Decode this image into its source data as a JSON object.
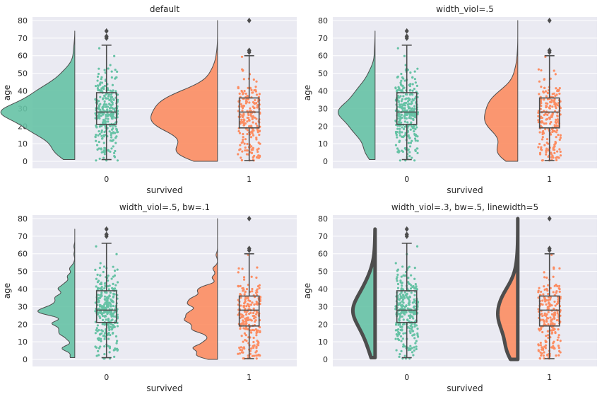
{
  "chart_data": [
    {
      "type": "raincloud",
      "title": "default",
      "xlabel": "survived",
      "ylabel": "age",
      "categories": [
        "0",
        "1"
      ],
      "ylim": [
        -4,
        82
      ],
      "yticks": [
        0,
        10,
        20,
        30,
        40,
        50,
        60,
        70,
        80
      ],
      "grid": true,
      "colors": [
        "#66c2a5",
        "#fc8d62"
      ],
      "width_viol": 1.0,
      "bw": "scott",
      "linewidth": 1,
      "boxes": [
        {
          "category": "0",
          "min": 1,
          "q1": 21,
          "median": 28,
          "q3": 39,
          "max": 66,
          "outliers": [
            70,
            71,
            74
          ]
        },
        {
          "category": "1",
          "min": 0.42,
          "q1": 19,
          "median": 28,
          "q3": 36,
          "max": 60,
          "outliers": [
            62,
            63,
            80
          ]
        }
      ]
    },
    {
      "type": "raincloud",
      "title": "width_viol=.5",
      "xlabel": "survived",
      "ylabel": "age",
      "categories": [
        "0",
        "1"
      ],
      "ylim": [
        -4,
        82
      ],
      "yticks": [
        0,
        10,
        20,
        30,
        40,
        50,
        60,
        70,
        80
      ],
      "grid": true,
      "colors": [
        "#66c2a5",
        "#fc8d62"
      ],
      "width_viol": 0.5,
      "bw": "scott",
      "linewidth": 1,
      "boxes": [
        {
          "category": "0",
          "min": 1,
          "q1": 21,
          "median": 28,
          "q3": 39,
          "max": 66,
          "outliers": [
            70,
            71,
            74
          ]
        },
        {
          "category": "1",
          "min": 0.42,
          "q1": 19,
          "median": 28,
          "q3": 36,
          "max": 60,
          "outliers": [
            62,
            63,
            80
          ]
        }
      ]
    },
    {
      "type": "raincloud",
      "title": "width_viol=.5, bw=.1",
      "xlabel": "survived",
      "ylabel": "age",
      "categories": [
        "0",
        "1"
      ],
      "ylim": [
        -4,
        82
      ],
      "yticks": [
        0,
        10,
        20,
        30,
        40,
        50,
        60,
        70,
        80
      ],
      "grid": true,
      "colors": [
        "#66c2a5",
        "#fc8d62"
      ],
      "width_viol": 0.5,
      "bw": 0.1,
      "linewidth": 1,
      "boxes": [
        {
          "category": "0",
          "min": 1,
          "q1": 21,
          "median": 28,
          "q3": 39,
          "max": 66,
          "outliers": [
            70,
            71,
            74
          ]
        },
        {
          "category": "1",
          "min": 0.42,
          "q1": 19,
          "median": 28,
          "q3": 36,
          "max": 60,
          "outliers": [
            62,
            63,
            80
          ]
        }
      ]
    },
    {
      "type": "raincloud",
      "title": "width_viol=.3, bw=.5, linewidth=5",
      "xlabel": "survived",
      "ylabel": "age",
      "categories": [
        "0",
        "1"
      ],
      "ylim": [
        -4,
        82
      ],
      "yticks": [
        0,
        10,
        20,
        30,
        40,
        50,
        60,
        70,
        80
      ],
      "grid": true,
      "colors": [
        "#66c2a5",
        "#fc8d62"
      ],
      "width_viol": 0.3,
      "bw": 0.5,
      "linewidth": 5,
      "boxes": [
        {
          "category": "0",
          "min": 1,
          "q1": 21,
          "median": 28,
          "q3": 39,
          "max": 66,
          "outliers": [
            70,
            71,
            74
          ]
        },
        {
          "category": "1",
          "min": 0.42,
          "q1": 19,
          "median": 28,
          "q3": 36,
          "max": 60,
          "outliers": [
            62,
            63,
            80
          ]
        }
      ]
    }
  ]
}
